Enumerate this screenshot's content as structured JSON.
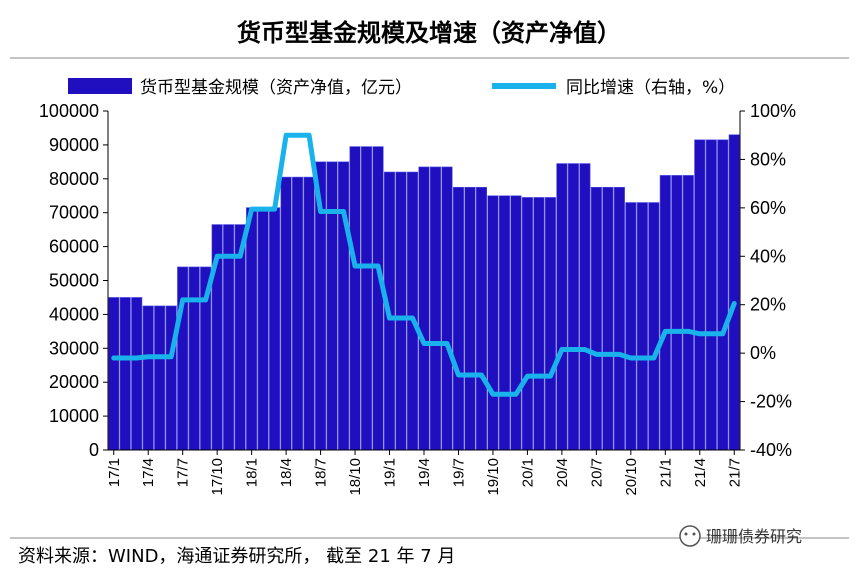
{
  "chart_data": {
    "type": "bar+line",
    "title": "货币型基金规模及增速（资产净值）",
    "legend": {
      "bar_label": "货币型基金规模（资产净值，亿元）",
      "line_label": "同比增速（右轴，%）"
    },
    "colors": {
      "bar": "#1f0fbf",
      "bar_edge": "#5050e6",
      "line": "#1ab2ea"
    },
    "x": [
      "17/1",
      "17/2",
      "17/3",
      "17/4",
      "17/5",
      "17/6",
      "17/7",
      "17/8",
      "17/9",
      "17/10",
      "17/11",
      "17/12",
      "18/1",
      "18/2",
      "18/3",
      "18/4",
      "18/5",
      "18/6",
      "18/7",
      "18/8",
      "18/9",
      "18/10",
      "18/11",
      "18/12",
      "19/1",
      "19/2",
      "19/3",
      "19/4",
      "19/5",
      "19/6",
      "19/7",
      "19/8",
      "19/9",
      "19/10",
      "19/11",
      "19/12",
      "20/1",
      "20/2",
      "20/3",
      "20/4",
      "20/5",
      "20/6",
      "20/7",
      "20/8",
      "20/9",
      "20/10",
      "20/11",
      "20/12",
      "21/1",
      "21/2",
      "21/3",
      "21/4",
      "21/5",
      "21/6",
      "21/7"
    ],
    "x_tick_labels": [
      "17/1",
      "17/4",
      "17/7",
      "17/10",
      "18/1",
      "18/4",
      "18/7",
      "18/10",
      "19/1",
      "19/4",
      "19/7",
      "19/10",
      "20/1",
      "20/4",
      "20/7",
      "20/10",
      "21/1",
      "21/4",
      "21/7"
    ],
    "bar_values": [
      45000,
      45000,
      45000,
      42500,
      42500,
      42500,
      54000,
      54000,
      54000,
      66500,
      66500,
      66500,
      71500,
      71500,
      71500,
      80500,
      80500,
      80500,
      85000,
      85000,
      85000,
      89500,
      89500,
      89500,
      82000,
      82000,
      82000,
      83500,
      83500,
      83500,
      77500,
      77500,
      77500,
      75000,
      75000,
      75000,
      74500,
      74500,
      74500,
      84500,
      84500,
      84500,
      77500,
      77500,
      77500,
      73000,
      73000,
      73000,
      81000,
      81000,
      81000,
      91500,
      91500,
      91500,
      93000
    ],
    "line_values": [
      -2,
      -2,
      -2,
      -1.5,
      -1.5,
      -1.5,
      22,
      22,
      22,
      40,
      40,
      40,
      59.5,
      59.5,
      59.5,
      90,
      90,
      90,
      58.5,
      58.5,
      58.5,
      36,
      36,
      36,
      14.5,
      14.5,
      14.5,
      4,
      4,
      4,
      -9,
      -9,
      -9,
      -17,
      -17,
      -17,
      -9.5,
      -9.5,
      -9.5,
      1.5,
      1.5,
      1.5,
      -0.5,
      -0.5,
      -0.5,
      -2,
      -2,
      -2,
      9,
      9,
      9,
      8,
      8,
      8,
      20.5
    ],
    "y_left": {
      "min": 0,
      "max": 100000,
      "step": 10000,
      "ticks": [
        "0",
        "10000",
        "20000",
        "30000",
        "40000",
        "50000",
        "60000",
        "70000",
        "80000",
        "90000",
        "100000"
      ]
    },
    "y_right": {
      "min": -40,
      "max": 100,
      "step": 20,
      "ticks": [
        "-40%",
        "-20%",
        "0%",
        "20%",
        "40%",
        "60%",
        "80%",
        "100%"
      ]
    }
  },
  "footer": {
    "source": "资料来源：WIND，海通证券研究所， 截至 21 年 7 月",
    "watermark": "珊珊债券研究"
  }
}
